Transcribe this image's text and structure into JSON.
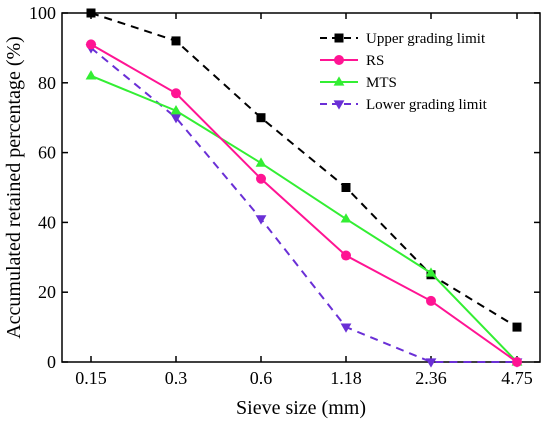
{
  "chart_data": {
    "type": "line",
    "title": "",
    "xlabel": "Sieve size (mm)",
    "ylabel": "Accumulated retained percentage (%)",
    "categories": [
      "0.15",
      "0.3",
      "0.6",
      "1.18",
      "2.36",
      "4.75"
    ],
    "ylim": [
      0,
      100
    ],
    "yticks": [
      0,
      20,
      40,
      60,
      80,
      100
    ],
    "grid": false,
    "legend_position": "top-right",
    "series": [
      {
        "name": "Upper grading limit",
        "values": [
          100,
          92,
          70,
          50,
          25,
          10
        ],
        "color": "#000000",
        "line": "dashed",
        "marker": "square"
      },
      {
        "name": "RS",
        "values": [
          91,
          77,
          52.5,
          30.5,
          17.5,
          0
        ],
        "color": "#ff1493",
        "line": "solid",
        "marker": "circle"
      },
      {
        "name": "MTS",
        "values": [
          82,
          72,
          57,
          41,
          25.5,
          0
        ],
        "color": "#33ee33",
        "line": "solid",
        "marker": "triangle-up"
      },
      {
        "name": "Lower grading limit",
        "values": [
          90,
          70,
          41,
          10,
          0,
          0
        ],
        "color": "#6a2fd6",
        "line": "dashed",
        "marker": "triangle-down"
      }
    ]
  }
}
